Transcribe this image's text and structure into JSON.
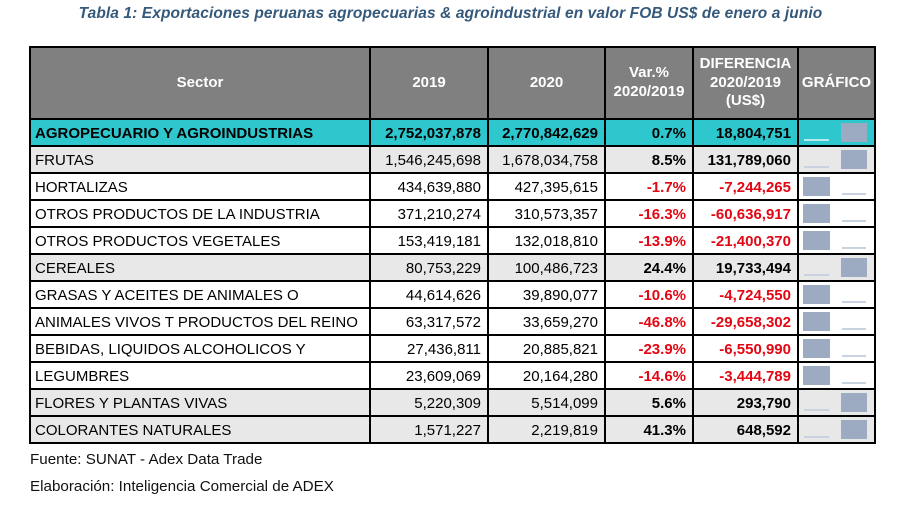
{
  "title": "Tabla 1: Exportaciones peruanas agropecuarias & agroindustrial en valor FOB US$ de enero a junio",
  "table": {
    "headers": {
      "sector": "Sector",
      "y2019": "2019",
      "y2020": "2020",
      "var": "Var.%\n2020/2019",
      "diff": "DIFERENCIA\n2020/2019\n(US$)",
      "grafico": "GRÁFICO"
    },
    "rows": [
      {
        "sector": "AGROPECUARIO Y AGROINDUSTRIAS",
        "y2019": "2,752,037,878",
        "y2020": "2,770,842,629",
        "var": "0.7%",
        "diff": "18,804,751",
        "negative": false,
        "style": "highlight"
      },
      {
        "sector": "FRUTAS",
        "y2019": "1,546,245,698",
        "y2020": "1,678,034,758",
        "var": "8.5%",
        "diff": "131,789,060",
        "negative": false,
        "style": "shaded"
      },
      {
        "sector": "HORTALIZAS",
        "y2019": "434,639,880",
        "y2020": "427,395,615",
        "var": "-1.7%",
        "diff": "-7,244,265",
        "negative": true,
        "style": "plain"
      },
      {
        "sector": "OTROS PRODUCTOS DE LA INDUSTRIA",
        "y2019": "371,210,274",
        "y2020": "310,573,357",
        "var": "-16.3%",
        "diff": "-60,636,917",
        "negative": true,
        "style": "plain"
      },
      {
        "sector": "OTROS PRODUCTOS VEGETALES",
        "y2019": "153,419,181",
        "y2020": "132,018,810",
        "var": "-13.9%",
        "diff": "-21,400,370",
        "negative": true,
        "style": "plain"
      },
      {
        "sector": "CEREALES",
        "y2019": "80,753,229",
        "y2020": "100,486,723",
        "var": "24.4%",
        "diff": "19,733,494",
        "negative": false,
        "style": "shaded"
      },
      {
        "sector": "GRASAS Y ACEITES DE ANIMALES O",
        "y2019": "44,614,626",
        "y2020": "39,890,077",
        "var": "-10.6%",
        "diff": "-4,724,550",
        "negative": true,
        "style": "plain"
      },
      {
        "sector": "ANIMALES VIVOS T PRODUCTOS DEL REINO",
        "y2019": "63,317,572",
        "y2020": "33,659,270",
        "var": "-46.8%",
        "diff": "-29,658,302",
        "negative": true,
        "style": "plain"
      },
      {
        "sector": "BEBIDAS, LIQUIDOS ALCOHOLICOS Y",
        "y2019": "27,436,811",
        "y2020": "20,885,821",
        "var": "-23.9%",
        "diff": "-6,550,990",
        "negative": true,
        "style": "plain"
      },
      {
        "sector": "LEGUMBRES",
        "y2019": "23,609,069",
        "y2020": "20,164,280",
        "var": "-14.6%",
        "diff": "-3,444,789",
        "negative": true,
        "style": "plain"
      },
      {
        "sector": "FLORES Y PLANTAS  VIVAS",
        "y2019": "5,220,309",
        "y2020": "5,514,099",
        "var": "5.6%",
        "diff": "293,790",
        "negative": false,
        "style": "shaded"
      },
      {
        "sector": "COLORANTES NATURALES",
        "y2019": "1,571,227",
        "y2020": "2,219,819",
        "var": "41.3%",
        "diff": "648,592",
        "negative": false,
        "style": "shaded"
      }
    ]
  },
  "footer": {
    "line1": "Fuente: SUNAT - Adex Data Trade",
    "line2": "Elaboración: Inteligencia Comercial de ADEX"
  },
  "colors": {
    "header_bg": "#808080",
    "highlight_row": "#2ec7cd",
    "shaded_row": "#e8e8e8",
    "negative_text": "#e30613",
    "spark_bar": "#9cabc1",
    "title_text": "#35597B"
  }
}
